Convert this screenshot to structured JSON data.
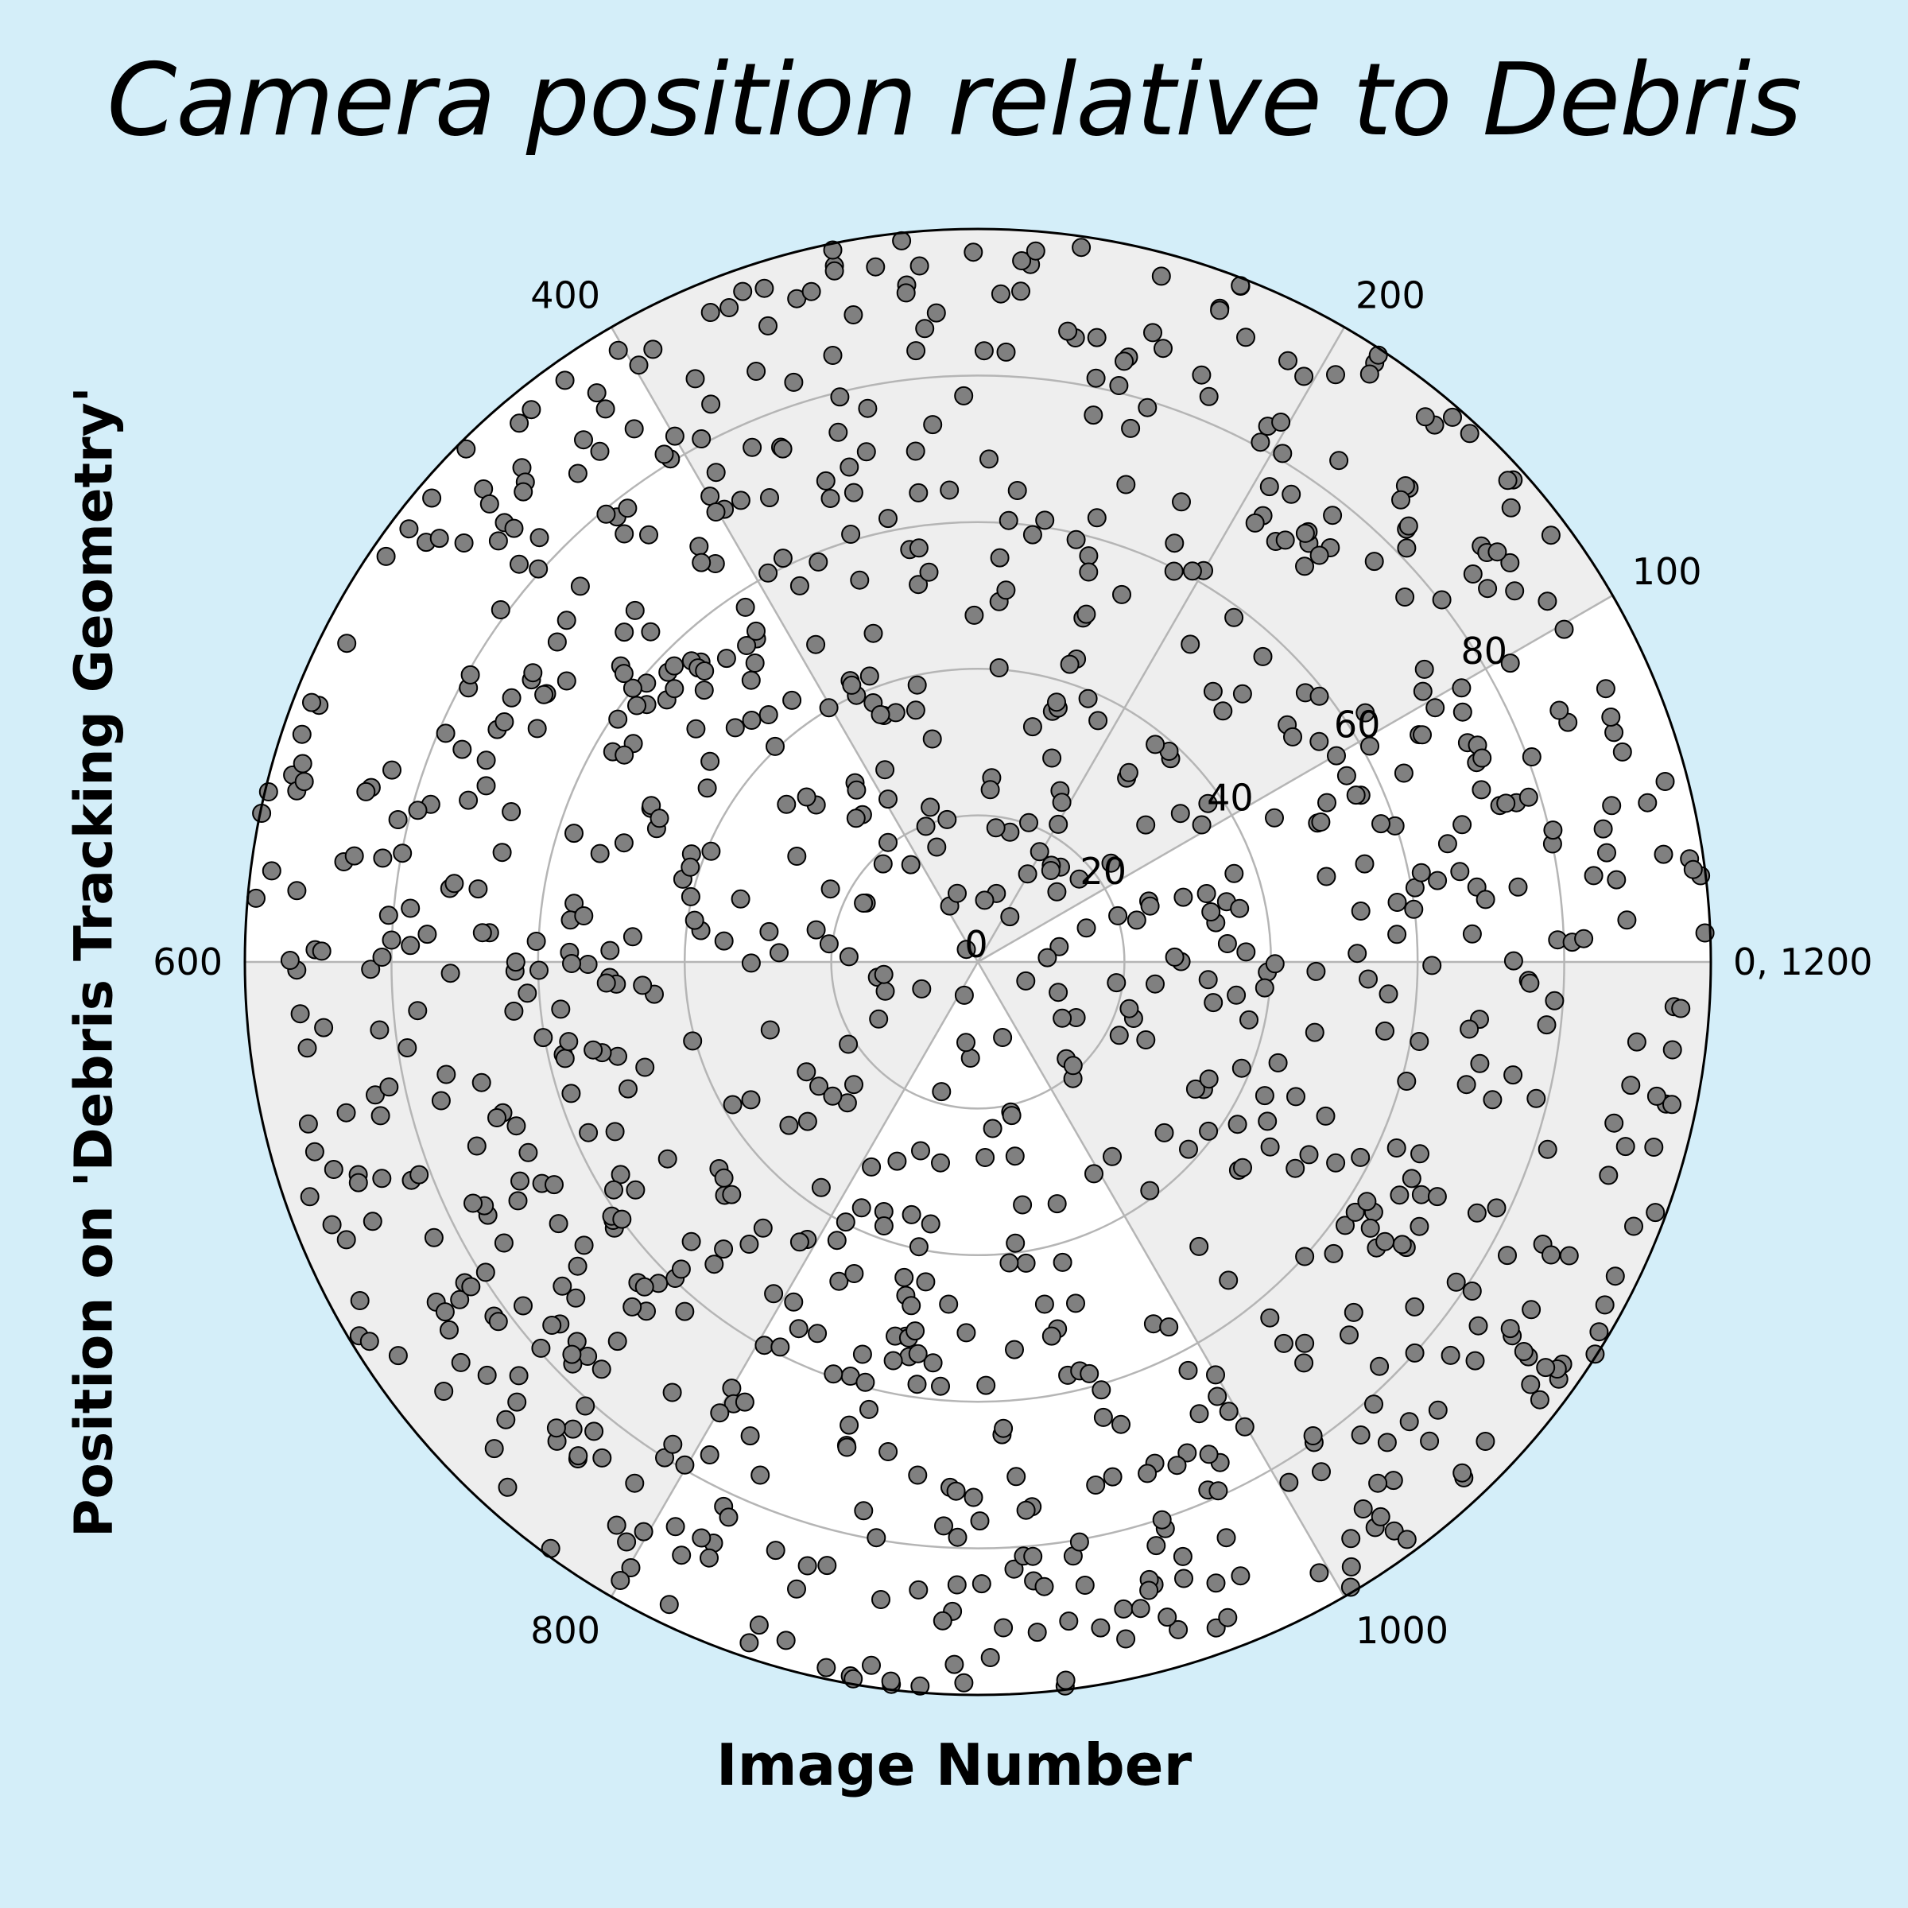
{
  "chart_data": {
    "type": "scatter",
    "projection": "polar",
    "title": "Camera position relative to Debris",
    "xlabel": "Image Number",
    "ylabel": "Position on 'Debris Tracking Geometry'",
    "theta_range": [
      0,
      1200
    ],
    "theta_direction": "counterclockwise",
    "theta_zero": "east",
    "theta_ticks": [
      0,
      100,
      200,
      400,
      600,
      800,
      1000
    ],
    "theta_tick_labels": [
      "0, 1200",
      "100",
      "200",
      "400",
      "600",
      "800",
      "1000"
    ],
    "r_range": [
      0,
      100
    ],
    "r_ticks": [
      0,
      20,
      40,
      60,
      80
    ],
    "r_tick_labels": [
      "0",
      "20",
      "40",
      "60",
      "80"
    ],
    "shaded_sectors": [
      [
        100,
        400
      ],
      [
        600,
        800
      ],
      [
        1000,
        1200
      ]
    ],
    "sector_colors": {
      "shaded": "#eeeeee",
      "unshaded": "#ffffff"
    },
    "point_count": 1000,
    "point_color": "#808080",
    "point_edge_color": "#000000",
    "background": "#d4eef9",
    "series": [
      {
        "name": "Debris",
        "description_of_distribution": "theta uniformly spread over 0-1200, r approximately sqrt-uniform over 0-100",
        "sample_points": [
          [
            12,
            18
          ],
          [
            44,
            62
          ],
          [
            97,
            88
          ],
          [
            103,
            95
          ],
          [
            150,
            40
          ],
          [
            180,
            70
          ],
          [
            230,
            55
          ],
          [
            260,
            80
          ],
          [
            300,
            35
          ],
          [
            350,
            90
          ],
          [
            420,
            65
          ],
          [
            470,
            98
          ],
          [
            520,
            30
          ],
          [
            560,
            75
          ],
          [
            610,
            50
          ],
          [
            650,
            92
          ],
          [
            700,
            25
          ],
          [
            740,
            85
          ],
          [
            790,
            60
          ],
          [
            840,
            95
          ],
          [
            880,
            45
          ],
          [
            930,
            78
          ],
          [
            980,
            20
          ],
          [
            1030,
            88
          ],
          [
            1080,
            55
          ],
          [
            1120,
            97
          ],
          [
            1170,
            38
          ],
          [
            1195,
            72
          ]
        ]
      }
    ]
  }
}
